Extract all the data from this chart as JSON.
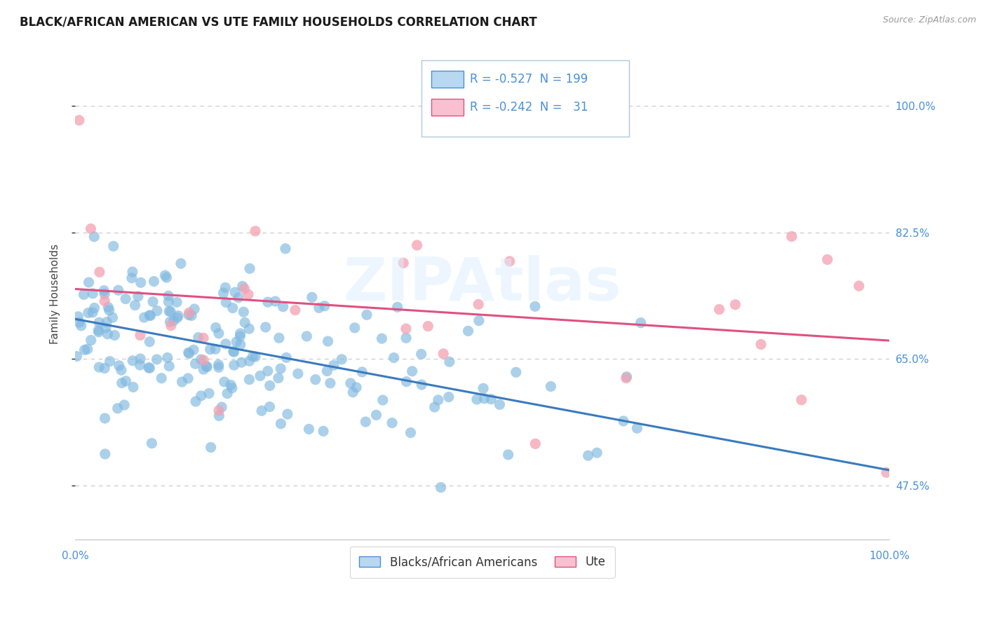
{
  "title": "BLACK/AFRICAN AMERICAN VS UTE FAMILY HOUSEHOLDS CORRELATION CHART",
  "source": "Source: ZipAtlas.com",
  "ylabel": "Family Households",
  "ytick_labels": [
    "47.5%",
    "65.0%",
    "82.5%",
    "100.0%"
  ],
  "ytick_values": [
    0.475,
    0.65,
    0.825,
    1.0
  ],
  "xlim": [
    0.0,
    1.0
  ],
  "ylim": [
    0.4,
    1.08
  ],
  "blue_R": -0.527,
  "blue_N": 199,
  "pink_R": -0.242,
  "pink_N": 31,
  "blue_color": "#7fb8e0",
  "pink_color": "#f4a0b0",
  "blue_line_color": "#3a7abf",
  "pink_line_color": "#e05080",
  "legend_box_blue": "#b8d8f0",
  "legend_box_pink": "#f8c0d0",
  "watermark": "ZIPAtlas",
  "background_color": "#ffffff",
  "grid_color": "#c8c8c8",
  "title_fontsize": 12,
  "axis_label_fontsize": 11,
  "tick_fontsize": 11,
  "legend_fontsize": 12
}
